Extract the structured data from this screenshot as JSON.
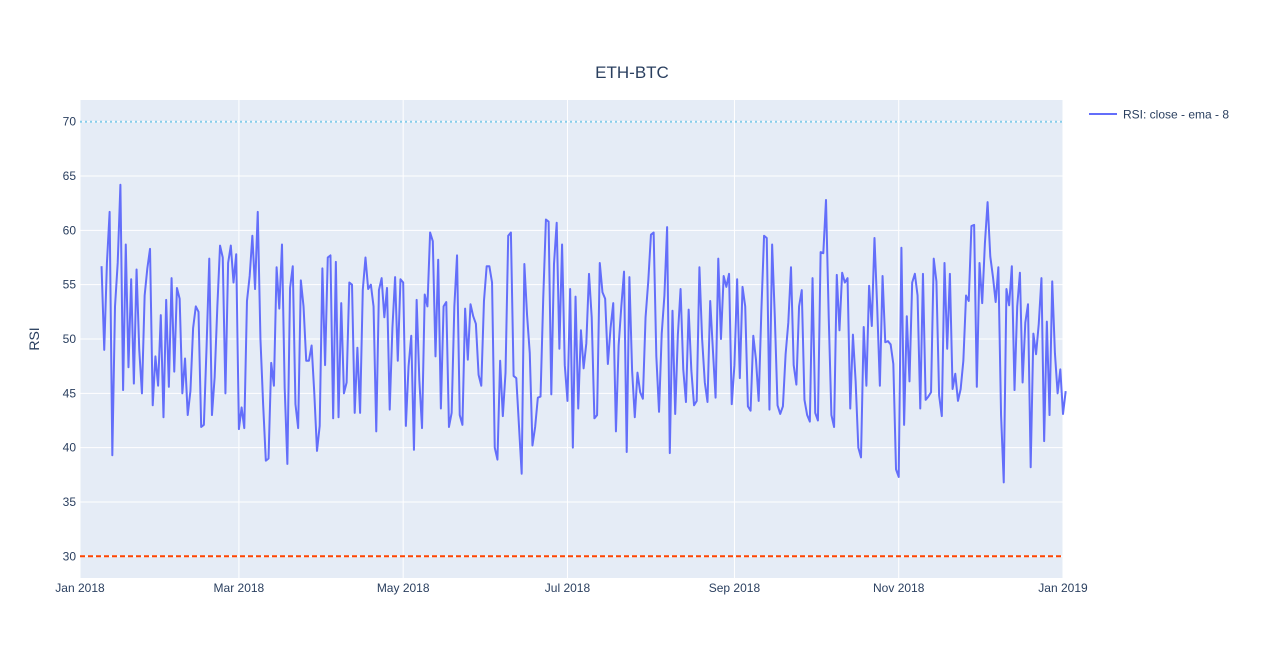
{
  "chart_data": {
    "type": "line",
    "title": "ETH-BTC",
    "xlabel": "",
    "ylabel": "RSI",
    "xlim": [
      "2018-01-01",
      "2019-01-01"
    ],
    "ylim": [
      28,
      72
    ],
    "x_ticks": [
      {
        "date": "2018-01-01",
        "label": "Jan 2018"
      },
      {
        "date": "2018-03-01",
        "label": "Mar 2018"
      },
      {
        "date": "2018-05-01",
        "label": "May 2018"
      },
      {
        "date": "2018-07-01",
        "label": "Jul 2018"
      },
      {
        "date": "2018-09-01",
        "label": "Sep 2018"
      },
      {
        "date": "2018-11-01",
        "label": "Nov 2018"
      },
      {
        "date": "2019-01-01",
        "label": "Jan 2019"
      }
    ],
    "y_ticks": [
      30,
      35,
      40,
      45,
      50,
      55,
      60,
      65,
      70
    ],
    "grid": true,
    "legend_position": "top-right",
    "reference_lines": [
      {
        "y": 70,
        "color": "#87ceeb",
        "style": "dotted"
      },
      {
        "y": 30,
        "color": "#ff4500",
        "style": "dashed"
      }
    ],
    "series": [
      {
        "name": "RSI: close - ema - 8",
        "color": "#636efa",
        "start_date": "2018-01-09",
        "step": "1 day",
        "values": [
          56.7,
          49.0,
          57.0,
          61.7,
          39.3,
          53.0,
          57.0,
          64.2,
          45.3,
          58.7,
          47.4,
          55.5,
          45.9,
          56.4,
          49.0,
          45.0,
          54.0,
          56.5,
          58.3,
          43.9,
          48.4,
          45.7,
          52.2,
          42.8,
          53.6,
          45.6,
          55.6,
          47.0,
          54.7,
          53.7,
          45.0,
          48.2,
          43.0,
          45.2,
          51.0,
          53.0,
          52.5,
          41.9,
          42.1,
          49.3,
          57.4,
          43.0,
          46.5,
          53.0,
          58.6,
          57.5,
          45.0,
          57.0,
          58.6,
          55.2,
          57.8,
          41.7,
          43.7,
          41.8,
          53.5,
          55.8,
          59.5,
          54.6,
          61.7,
          50.0,
          44.0,
          38.8,
          39.0,
          47.8,
          45.7,
          56.6,
          52.8,
          58.7,
          45.5,
          38.5,
          54.7,
          56.7,
          44.0,
          41.8,
          55.4,
          53.0,
          48.0,
          48.0,
          49.4,
          45.0,
          39.7,
          42.0,
          56.5,
          47.6,
          57.5,
          57.7,
          42.7,
          57.1,
          42.8,
          53.3,
          45.0,
          46.0,
          55.2,
          55.0,
          43.2,
          49.2,
          43.2,
          54.5,
          57.5,
          54.6,
          55.0,
          53.0,
          41.5,
          54.5,
          55.6,
          52.0,
          54.7,
          43.5,
          51.0,
          55.7,
          48.0,
          55.5,
          55.2,
          42.0,
          47.5,
          50.3,
          39.8,
          53.6,
          46.2,
          41.8,
          54.1,
          53.0,
          59.8,
          59.0,
          48.4,
          57.3,
          43.6,
          53.0,
          53.4,
          41.9,
          43.2,
          53.0,
          57.7,
          43.0,
          42.1,
          52.8,
          48.1,
          53.2,
          52.1,
          51.4,
          46.7,
          45.7,
          53.5,
          56.7,
          56.7,
          55.2,
          40.0,
          38.9,
          48.0,
          42.9,
          46.9,
          59.5,
          59.8,
          46.6,
          46.4,
          42.0,
          37.6,
          56.9,
          52.2,
          48.7,
          40.2,
          41.9,
          44.6,
          44.7,
          53.7,
          61.0,
          60.8,
          44.9,
          56.9,
          60.7,
          49.1,
          58.7,
          47.6,
          44.3,
          54.6,
          40.0,
          53.9,
          43.6,
          50.8,
          47.3,
          49.6,
          56.0,
          52.0,
          42.7,
          43.0,
          57.0,
          54.3,
          53.7,
          47.7,
          51.0,
          53.3,
          41.5,
          49.4,
          53.0,
          56.2,
          39.6,
          55.7,
          47.1,
          42.8,
          46.9,
          45.1,
          44.5,
          52.0,
          55.3,
          59.6,
          59.8,
          48.4,
          43.3,
          50.5,
          54.0,
          60.3,
          39.5,
          52.6,
          43.1,
          50.4,
          54.6,
          47.2,
          44.2,
          52.7,
          47.1,
          43.9,
          44.3,
          56.6,
          50.0,
          46.0,
          44.2,
          53.5,
          49.0,
          44.6,
          57.4,
          50.0,
          55.8,
          54.8,
          56.0,
          44.0,
          47.6,
          55.5,
          46.4,
          54.8,
          53.0,
          43.8,
          43.4,
          50.3,
          48.1,
          44.3,
          52.6,
          59.5,
          59.3,
          43.5,
          58.7,
          52.0,
          43.9,
          43.1,
          43.8,
          48.6,
          51.5,
          56.6,
          47.6,
          45.8,
          53.0,
          54.5,
          44.4,
          43.0,
          42.4,
          55.6,
          43.2,
          42.5,
          58.0,
          57.9,
          62.8,
          52.1,
          43.0,
          41.9,
          55.9,
          50.8,
          56.1,
          55.2,
          55.6,
          43.6,
          50.4,
          46.1,
          40.0,
          39.1,
          51.1,
          45.7,
          54.9,
          51.2,
          59.3,
          53.0,
          45.7,
          55.8,
          49.7,
          49.8,
          49.5,
          47.7,
          38.0,
          37.3,
          58.4,
          42.1,
          52.1,
          46.1,
          55.2,
          56.0,
          54.0,
          43.6,
          56.0,
          44.4,
          44.7,
          45.1,
          57.4,
          55.3,
          44.8,
          42.9,
          57.0,
          49.1,
          56.0,
          45.4,
          46.8,
          44.3,
          45.4,
          48.0,
          54.0,
          53.5,
          60.4,
          60.5,
          45.6,
          57.0,
          53.3,
          58.8,
          62.6,
          57.6,
          55.7,
          53.4,
          56.6,
          43.0,
          36.8,
          54.6,
          53.1,
          56.7,
          45.3,
          53.0,
          56.1,
          46.0,
          51.5,
          53.2,
          38.2,
          50.5,
          48.6,
          51.4,
          55.6,
          40.6,
          51.6,
          43.0,
          55.3,
          48.7,
          45.0,
          47.2,
          43.1,
          45.2
        ]
      }
    ]
  }
}
